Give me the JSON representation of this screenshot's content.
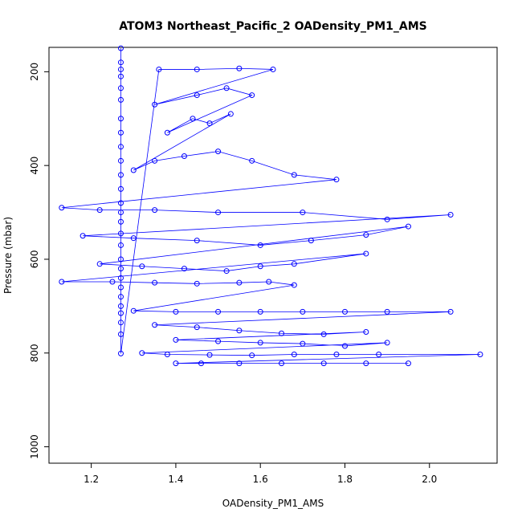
{
  "chart_data": {
    "type": "scatter",
    "title": "ATOM3 Northeast_Pacific_2 OADensity_PM1_AMS",
    "xlabel": "OADensity_PM1_AMS",
    "ylabel": "Pressure (mbar)",
    "xlim": [
      1.1,
      2.16
    ],
    "ylim": [
      1035,
      148
    ],
    "y_inverted": true,
    "x_ticks": [
      1.2,
      1.4,
      1.6,
      1.8,
      2.0
    ],
    "x_tick_labels": [
      "1.2",
      "1.4",
      "1.6",
      "1.8",
      "2.0"
    ],
    "y_ticks": [
      200,
      400,
      600,
      800,
      1000
    ],
    "y_tick_labels": [
      "200",
      "400",
      "600",
      "800",
      "1000"
    ],
    "grid": false,
    "color": "#0000ff",
    "marker": "open-circle",
    "connected": true,
    "series": [
      {
        "values": [
          [
            1.27,
            150
          ],
          [
            1.27,
            180
          ],
          [
            1.27,
            195
          ],
          [
            1.27,
            210
          ],
          [
            1.27,
            235
          ],
          [
            1.27,
            260
          ],
          [
            1.27,
            300
          ],
          [
            1.27,
            330
          ],
          [
            1.27,
            360
          ],
          [
            1.27,
            390
          ],
          [
            1.27,
            420
          ],
          [
            1.27,
            450
          ],
          [
            1.27,
            480
          ],
          [
            1.27,
            500
          ],
          [
            1.27,
            520
          ],
          [
            1.27,
            545
          ],
          [
            1.27,
            570
          ],
          [
            1.27,
            600
          ],
          [
            1.27,
            620
          ],
          [
            1.27,
            640
          ],
          [
            1.27,
            660
          ],
          [
            1.27,
            680
          ],
          [
            1.27,
            700
          ],
          [
            1.27,
            715
          ],
          [
            1.27,
            735
          ],
          [
            1.27,
            760
          ],
          [
            1.27,
            801
          ],
          [
            1.36,
            195
          ],
          [
            1.45,
            195
          ],
          [
            1.55,
            193
          ],
          [
            1.63,
            195
          ],
          [
            1.35,
            270
          ],
          [
            1.45,
            250
          ],
          [
            1.52,
            235
          ],
          [
            1.58,
            250
          ],
          [
            1.38,
            330
          ],
          [
            1.44,
            300
          ],
          [
            1.48,
            310
          ],
          [
            1.53,
            290
          ],
          [
            1.3,
            410
          ],
          [
            1.35,
            390
          ],
          [
            1.42,
            380
          ],
          [
            1.5,
            370
          ],
          [
            1.58,
            390
          ],
          [
            1.68,
            420
          ],
          [
            1.78,
            430
          ],
          [
            1.13,
            490
          ],
          [
            1.22,
            495
          ],
          [
            1.35,
            495
          ],
          [
            1.5,
            500
          ],
          [
            1.7,
            500
          ],
          [
            1.9,
            515
          ],
          [
            2.05,
            505
          ],
          [
            1.18,
            550
          ],
          [
            1.3,
            555
          ],
          [
            1.45,
            560
          ],
          [
            1.6,
            570
          ],
          [
            1.72,
            560
          ],
          [
            1.85,
            548
          ],
          [
            1.95,
            530
          ],
          [
            1.22,
            610
          ],
          [
            1.32,
            615
          ],
          [
            1.42,
            620
          ],
          [
            1.52,
            625
          ],
          [
            1.6,
            615
          ],
          [
            1.68,
            610
          ],
          [
            1.85,
            588
          ],
          [
            1.13,
            648
          ],
          [
            1.25,
            648
          ],
          [
            1.35,
            650
          ],
          [
            1.45,
            652
          ],
          [
            1.55,
            650
          ],
          [
            1.62,
            648
          ],
          [
            1.68,
            655
          ],
          [
            1.3,
            710
          ],
          [
            1.4,
            712
          ],
          [
            1.5,
            712
          ],
          [
            1.6,
            712
          ],
          [
            1.7,
            712
          ],
          [
            1.8,
            712
          ],
          [
            1.9,
            712
          ],
          [
            2.05,
            712
          ],
          [
            1.35,
            740
          ],
          [
            1.45,
            745
          ],
          [
            1.55,
            752
          ],
          [
            1.65,
            758
          ],
          [
            1.75,
            760
          ],
          [
            1.85,
            755
          ],
          [
            1.4,
            772
          ],
          [
            1.5,
            775
          ],
          [
            1.6,
            778
          ],
          [
            1.7,
            780
          ],
          [
            1.8,
            785
          ],
          [
            1.9,
            778
          ],
          [
            1.32,
            800
          ],
          [
            1.38,
            803
          ],
          [
            1.48,
            804
          ],
          [
            1.58,
            805
          ],
          [
            1.68,
            803
          ],
          [
            1.78,
            803
          ],
          [
            1.88,
            803
          ],
          [
            2.12,
            803
          ],
          [
            1.4,
            822
          ],
          [
            1.46,
            822
          ],
          [
            1.55,
            822
          ],
          [
            1.65,
            822
          ],
          [
            1.75,
            822
          ],
          [
            1.85,
            822
          ],
          [
            1.95,
            822
          ]
        ]
      }
    ]
  }
}
